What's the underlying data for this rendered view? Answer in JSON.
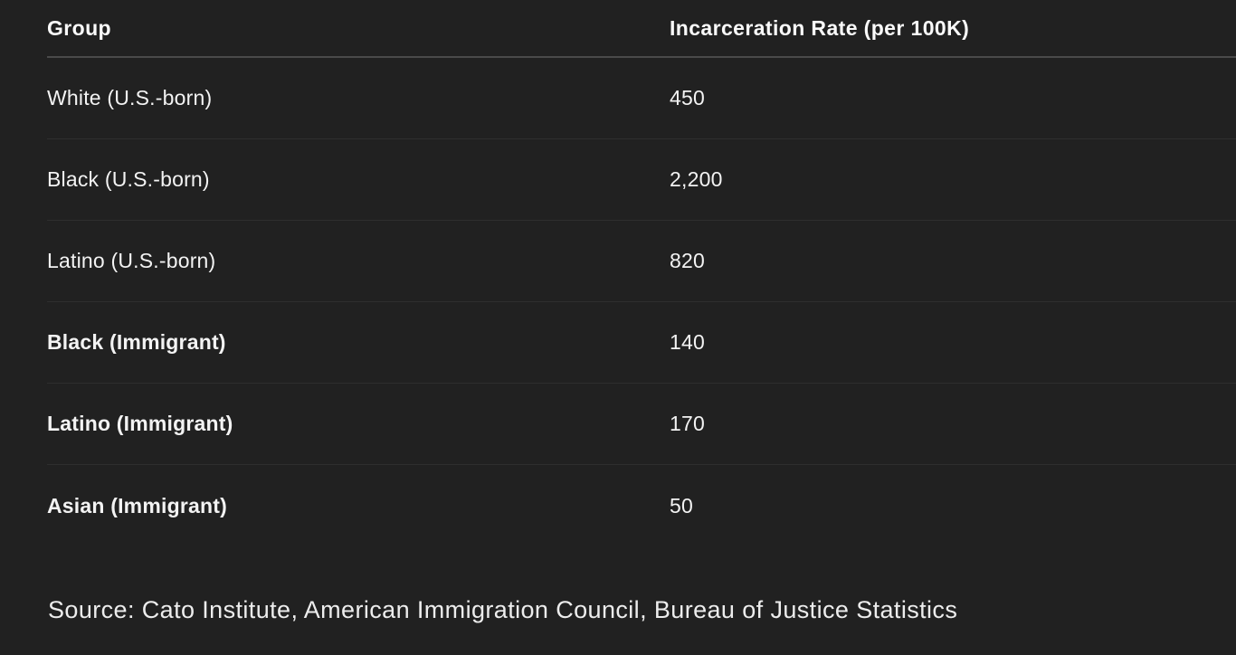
{
  "colors": {
    "background": "#212121",
    "text": "#f3f3f3",
    "header_divider": "#4a4a4a",
    "row_divider": "#2e2e2e"
  },
  "table": {
    "columns": [
      "Group",
      "Incarceration Rate (per 100K)"
    ],
    "rows": [
      {
        "group": "White (U.S.-born)",
        "rate": "450",
        "bold": false
      },
      {
        "group": "Black (U.S.-born)",
        "rate": "2,200",
        "bold": false
      },
      {
        "group": "Latino (U.S.-born)",
        "rate": "820",
        "bold": false
      },
      {
        "group": "Black (Immigrant)",
        "rate": "140",
        "bold": true
      },
      {
        "group": "Latino (Immigrant)",
        "rate": "170",
        "bold": true
      },
      {
        "group": "Asian (Immigrant)",
        "rate": "50",
        "bold": true
      }
    ]
  },
  "source": "Source: Cato Institute, American Immigration Council, Bureau of Justice Statistics",
  "chart_data": {
    "type": "table",
    "title": "",
    "columns": [
      "Group",
      "Incarceration Rate (per 100K)"
    ],
    "categories": [
      "White (U.S.-born)",
      "Black (U.S.-born)",
      "Latino (U.S.-born)",
      "Black (Immigrant)",
      "Latino (Immigrant)",
      "Asian (Immigrant)"
    ],
    "values": [
      450,
      2200,
      820,
      140,
      170,
      50
    ],
    "emphasized_rows": [
      "Black (Immigrant)",
      "Latino (Immigrant)",
      "Asian (Immigrant)"
    ],
    "source": "Source: Cato Institute, American Immigration Council, Bureau of Justice Statistics"
  }
}
